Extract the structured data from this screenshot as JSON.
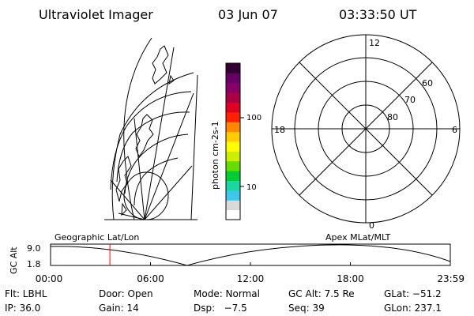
{
  "header": {
    "instrument": "Ultraviolet Imager",
    "date": "03 Jun 07",
    "time": "03:33:50 UT"
  },
  "colorbar": {
    "unit_label": "photon cm-2s-1",
    "tick_labels": [
      "100",
      "10"
    ],
    "colors": [
      "#ffffff",
      "#d9d9d9",
      "#3ec7e8",
      "#1bd6a0",
      "#00cc33",
      "#66dd00",
      "#ccee00",
      "#ffff00",
      "#ffcc00",
      "#ff8800",
      "#ff2200",
      "#dd0022",
      "#aa0044",
      "#880066",
      "#660066",
      "#330033"
    ]
  },
  "polar_plot": {
    "mlt_labels": [
      "12",
      "18",
      "6",
      "0"
    ],
    "lat_labels": [
      "60",
      "70",
      "80"
    ]
  },
  "timeline": {
    "left_label": "Geographic Lat/Lon",
    "right_label": "Apex MLat/MLT",
    "y_axis_label": "GC Alt",
    "y_ticks": [
      "9.0",
      "1.8"
    ],
    "x_ticks": [
      "00:00",
      "06:00",
      "12:00",
      "18:00",
      "23:59"
    ],
    "current_time_hours": 3.564,
    "marker_color": "#ff0000"
  },
  "status": {
    "flt": "Flt: LBHL",
    "door": "Door: Open",
    "mode": "Mode: Normal",
    "gcalt": "GC Alt: 7.5 Re",
    "glat": "GLat: −51.2",
    "ip": "IP: 36.0",
    "gain": "Gain: 14",
    "dsp": "Dsp:   −7.5",
    "seq": "Seq: 39",
    "glon": "GLon: 237.1"
  }
}
